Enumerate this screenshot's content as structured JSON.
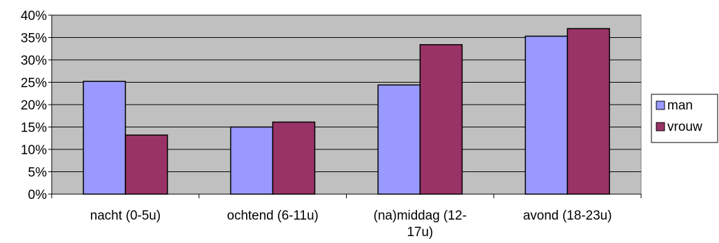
{
  "chart_data": {
    "type": "bar",
    "categories": [
      "nacht (0-5u)",
      "ochtend (6-11u)",
      "(na)middag (12-17u)",
      "avond (18-23u)"
    ],
    "category_lines": [
      [
        "nacht (0-5u)"
      ],
      [
        "ochtend (6-11u)"
      ],
      [
        "(na)middag (12-",
        "17u)"
      ],
      [
        "avond (18-23u)"
      ]
    ],
    "series": [
      {
        "name": "man",
        "values": [
          25.2,
          15.0,
          24.4,
          35.3
        ],
        "color": "#9999ff"
      },
      {
        "name": "vrouw",
        "values": [
          13.2,
          16.1,
          33.4,
          37.0
        ],
        "color": "#993366"
      }
    ],
    "ylim": [
      0,
      40
    ],
    "y_ticks": [
      "0%",
      "5%",
      "10%",
      "15%",
      "20%",
      "25%",
      "30%",
      "35%",
      "40%"
    ],
    "y_tick_values": [
      0,
      5,
      10,
      15,
      20,
      25,
      30,
      35,
      40
    ],
    "plot_background": "#c0c0c0",
    "grid": true,
    "legend_position": "right",
    "title": "",
    "xlabel": "",
    "ylabel": ""
  }
}
